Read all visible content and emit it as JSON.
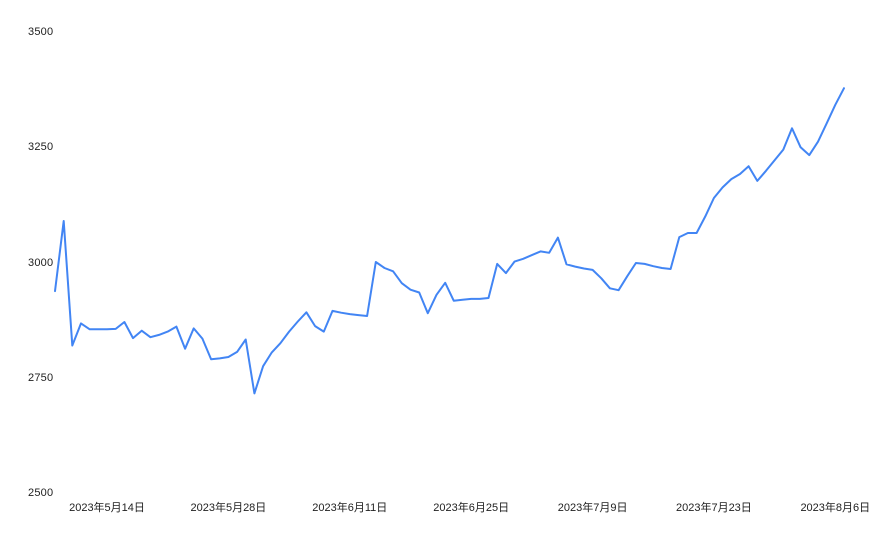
{
  "chart": {
    "background_color": "#ffffff",
    "label_color": "#212121",
    "line_color": "#4285f4"
  },
  "chart_data": {
    "type": "line",
    "title": "",
    "xlabel": "",
    "ylabel": "",
    "grid": false,
    "legend": "none",
    "ylim": [
      2500,
      3500
    ],
    "y_ticks": [
      3500,
      3250,
      3000,
      2750,
      2500
    ],
    "x_ticks": [
      {
        "label": "2023年5月14日",
        "day_index": 6
      },
      {
        "label": "2023年5月28日",
        "day_index": 20
      },
      {
        "label": "2023年6月11日",
        "day_index": 34
      },
      {
        "label": "2023年6月25日",
        "day_index": 48
      },
      {
        "label": "2023年7月9日",
        "day_index": 62
      },
      {
        "label": "2023年7月23日",
        "day_index": 76
      },
      {
        "label": "2023年8月6日",
        "day_index": 90
      }
    ],
    "start_date": "2023-05-08",
    "end_date": "2023-08-07",
    "frequency": "daily",
    "line_color": "#4285f4",
    "values": [
      2938,
      3090,
      2820,
      2868,
      2855,
      2855,
      2855,
      2856,
      2871,
      2836,
      2852,
      2838,
      2843,
      2850,
      2861,
      2813,
      2857,
      2835,
      2790,
      2792,
      2795,
      2806,
      2833,
      2716,
      2775,
      2805,
      2825,
      2850,
      2872,
      2892,
      2862,
      2850,
      2895,
      2891,
      2888,
      2886,
      2884,
      3001,
      2988,
      2981,
      2955,
      2941,
      2935,
      2890,
      2930,
      2956,
      2917,
      2919,
      2921,
      2921,
      2923,
      2997,
      2977,
      3002,
      3008,
      3016,
      3024,
      3021,
      3054,
      2996,
      2991,
      2987,
      2984,
      2966,
      2944,
      2940,
      2970,
      2999,
      2997,
      2992,
      2988,
      2986,
      3055,
      3064,
      3064,
      3100,
      3140,
      3163,
      3181,
      3192,
      3209,
      3177,
      3199,
      3222,
      3245,
      3291,
      3250,
      3233,
      3262,
      3302,
      3342,
      3378
    ]
  }
}
